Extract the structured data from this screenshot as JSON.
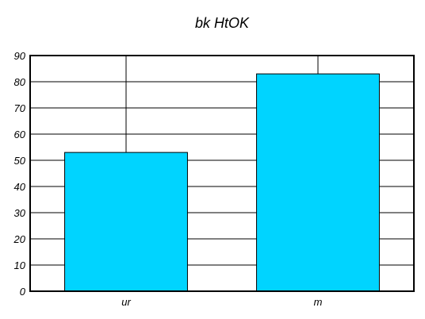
{
  "chart_data": {
    "type": "bar",
    "title": "bk HtOK",
    "xlabel": "",
    "ylabel": "",
    "categories": [
      "ur",
      "m"
    ],
    "values": [
      53,
      83
    ],
    "ylim": [
      0,
      90
    ],
    "yticks": [
      0,
      10,
      20,
      30,
      40,
      50,
      60,
      70,
      80,
      90
    ],
    "grid": true,
    "legend": "none",
    "colors": {
      "bar": "#00d4ff",
      "grid": "#000000",
      "background": "#ffffff"
    }
  }
}
